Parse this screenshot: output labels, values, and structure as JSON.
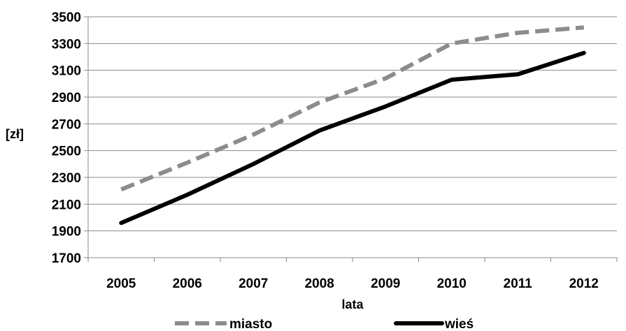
{
  "chart_data": {
    "type": "line",
    "title": "",
    "xlabel": "lata",
    "ylabel": "[zł]",
    "categories": [
      "2005",
      "2006",
      "2007",
      "2008",
      "2009",
      "2010",
      "2011",
      "2012"
    ],
    "ylim": [
      1700,
      3500
    ],
    "yticks": [
      1700,
      1900,
      2100,
      2300,
      2500,
      2700,
      2900,
      3100,
      3300,
      3500
    ],
    "grid": true,
    "legend_position": "bottom",
    "series": [
      {
        "name": "miasto",
        "values": [
          2210,
          2410,
          2620,
          2860,
          3040,
          3300,
          3380,
          3420
        ],
        "color": "#8c8c8c",
        "style": "dashed"
      },
      {
        "name": "wieś",
        "values": [
          1960,
          2170,
          2400,
          2650,
          2830,
          3030,
          3070,
          3230
        ],
        "color": "#000000",
        "style": "solid"
      }
    ]
  }
}
